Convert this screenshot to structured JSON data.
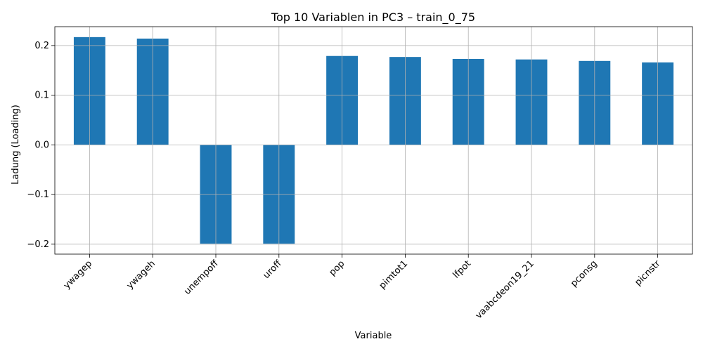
{
  "chart_data": {
    "type": "bar",
    "title": "Top 10 Variablen in PC3 – train_0_75",
    "xlabel": "Variable",
    "ylabel": "Ladung (Loading)",
    "categories": [
      "ywagep",
      "ywageh",
      "unempoff",
      "uroff",
      "pop",
      "pimtot1",
      "lfpot",
      "vaabcdeon19_21",
      "pconsg",
      "picnstr"
    ],
    "values": [
      0.217,
      0.214,
      -0.199,
      -0.199,
      0.179,
      0.177,
      0.173,
      0.172,
      0.169,
      0.166
    ],
    "ylim": [
      -0.22,
      0.238
    ],
    "yticks": [
      -0.2,
      -0.1,
      0.0,
      0.1,
      0.2
    ],
    "ytick_labels": [
      "−0.2",
      "−0.1",
      "0.0",
      "0.1",
      "0.2"
    ],
    "grid": true,
    "bar_color": "#1f77b4",
    "grid_color": "#b0b0b0"
  }
}
